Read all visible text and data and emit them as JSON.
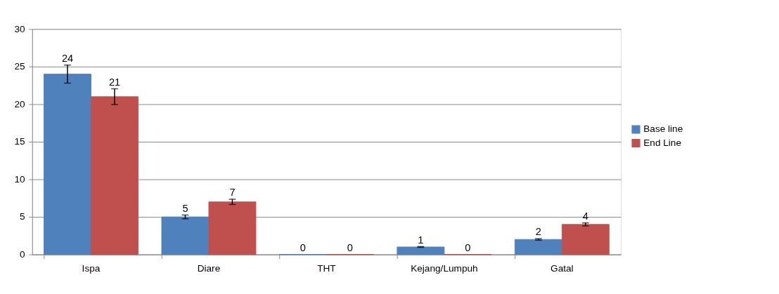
{
  "chart_data": {
    "type": "bar",
    "categories": [
      "Ispa",
      "Diare",
      "THT",
      "Kejang/Lumpuh",
      "Gatal"
    ],
    "series": [
      {
        "name": "Base line",
        "color": "#4f81bd",
        "values": [
          24,
          5,
          0,
          1,
          2
        ],
        "errors": [
          1.2,
          0.25,
          null,
          0.05,
          0.1
        ]
      },
      {
        "name": "End Line",
        "color": "#c0504d",
        "values": [
          21,
          7,
          0,
          0,
          4
        ],
        "errors": [
          1.05,
          0.35,
          null,
          null,
          0.2
        ]
      }
    ],
    "ylim": [
      0,
      30
    ],
    "yticks": [
      0,
      5,
      10,
      15,
      20,
      25,
      30
    ],
    "grid": "y",
    "legend": "right",
    "data_labels": true
  }
}
